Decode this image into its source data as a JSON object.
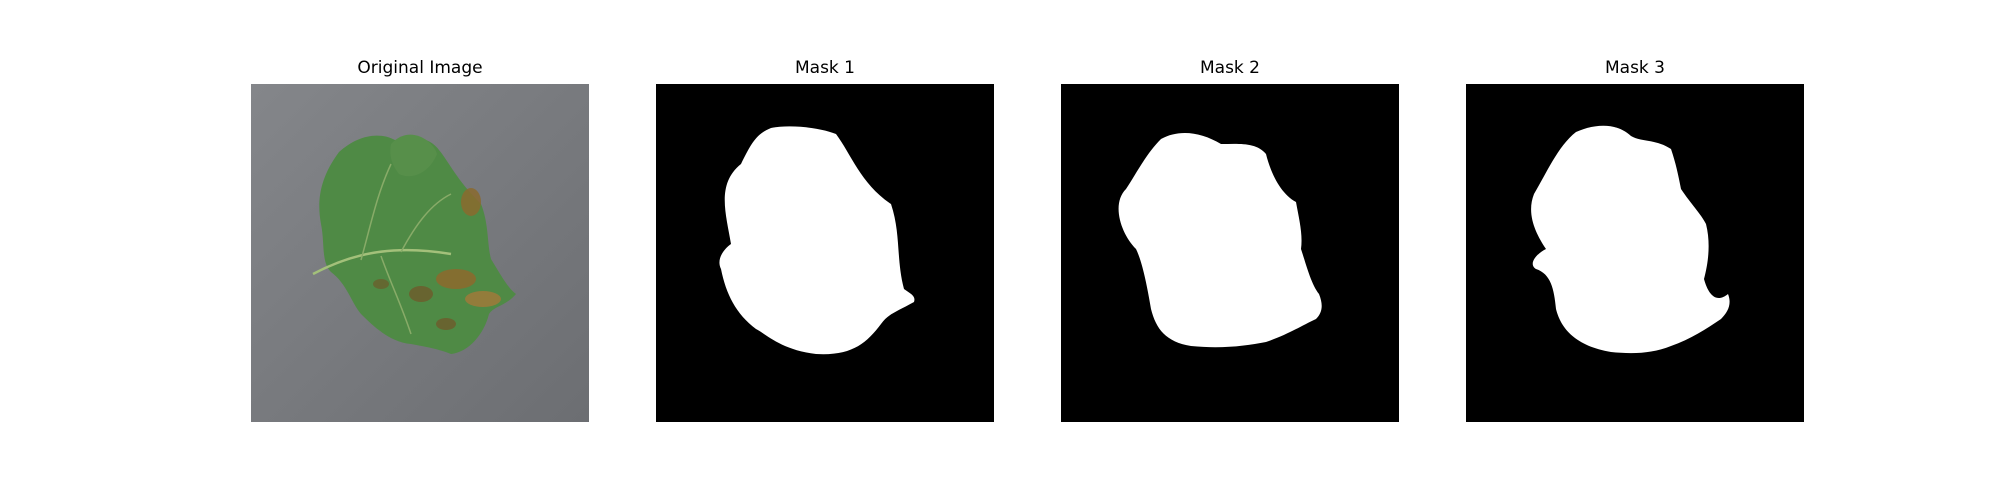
{
  "figure": {
    "panels": [
      {
        "title": "Original Image",
        "kind": "photo",
        "subject": "leaf-photo"
      },
      {
        "title": "Mask 1",
        "kind": "mask"
      },
      {
        "title": "Mask 2",
        "kind": "mask"
      },
      {
        "title": "Mask 3",
        "kind": "mask"
      }
    ]
  },
  "colors": {
    "background": "#ffffff",
    "photo_background": "#7a7c80",
    "leaf_green": "#4f8a45",
    "leaf_dark": "#3b6e36",
    "lesion_brown": "#8a6a2e",
    "mask_background": "#000000",
    "mask_foreground": "#ffffff"
  }
}
